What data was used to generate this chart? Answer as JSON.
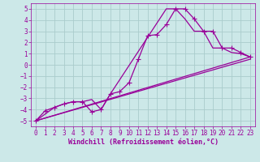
{
  "xlabel": "Windchill (Refroidissement éolien,°C)",
  "bg_color": "#cce8e8",
  "grid_color": "#aacccc",
  "line_color": "#990099",
  "xlim": [
    -0.5,
    23.5
  ],
  "ylim": [
    -5.5,
    5.5
  ],
  "xticks": [
    0,
    1,
    2,
    3,
    4,
    5,
    6,
    7,
    8,
    9,
    10,
    11,
    12,
    13,
    14,
    15,
    16,
    17,
    18,
    19,
    20,
    21,
    22,
    23
  ],
  "yticks": [
    -5,
    -4,
    -3,
    -2,
    -1,
    0,
    1,
    2,
    3,
    4,
    5
  ],
  "series1_x": [
    0,
    1,
    2,
    3,
    4,
    5,
    6,
    7,
    8,
    9,
    10,
    11,
    12,
    13,
    14,
    15,
    16,
    17,
    18,
    19,
    20,
    21,
    22,
    23
  ],
  "series1_y": [
    -5,
    -4.1,
    -3.8,
    -3.5,
    -3.3,
    -3.3,
    -4.2,
    -4.0,
    -2.6,
    -2.4,
    -1.6,
    0.5,
    2.6,
    2.7,
    3.6,
    5.0,
    5.0,
    4.1,
    3.0,
    3.0,
    1.5,
    1.5,
    1.1,
    0.7
  ],
  "series2_x": [
    0,
    2,
    3,
    4,
    5,
    6,
    7,
    8,
    14,
    15,
    16,
    17,
    18,
    19,
    20,
    21,
    22,
    23
  ],
  "series2_y": [
    -5,
    -3.8,
    -3.5,
    -3.3,
    -3.3,
    -3.1,
    -4.0,
    -2.6,
    5.0,
    5.0,
    4.1,
    3.0,
    3.0,
    1.5,
    1.5,
    1.1,
    1.0,
    0.7
  ],
  "series3_x": [
    0,
    23
  ],
  "series3_y": [
    -5,
    0.5
  ],
  "series4_x": [
    0,
    23
  ],
  "series4_y": [
    -5,
    0.7
  ],
  "marker": "+",
  "markersize": 4,
  "linewidth": 0.9,
  "tick_fontsize": 5.5,
  "xlabel_fontsize": 6.0
}
